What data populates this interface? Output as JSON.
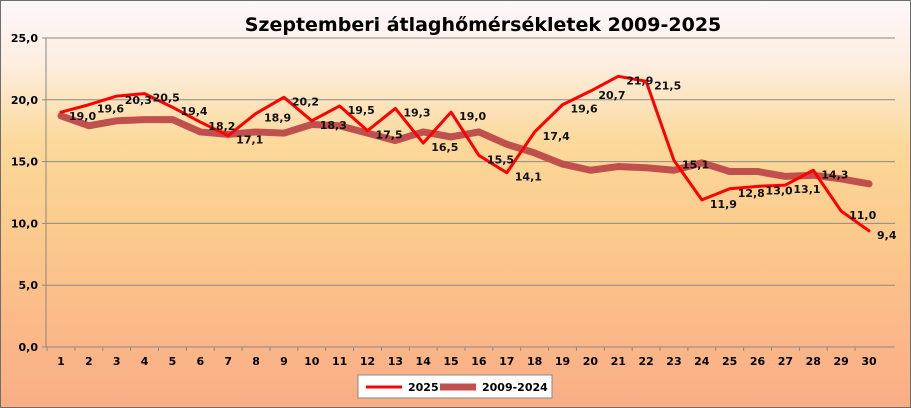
{
  "chart_data": {
    "type": "line",
    "title": "Szeptemberi átlaghőmérsékletek  2009-2025",
    "xlabel": "",
    "ylabel": "",
    "x": [
      1,
      2,
      3,
      4,
      5,
      6,
      7,
      8,
      9,
      10,
      11,
      12,
      13,
      14,
      15,
      16,
      17,
      18,
      19,
      20,
      21,
      22,
      23,
      24,
      25,
      26,
      27,
      28,
      29,
      30
    ],
    "ylim": [
      0,
      25
    ],
    "yticks": [
      "0,0",
      "5,0",
      "10,0",
      "15,0",
      "20,0",
      "25,0"
    ],
    "grid": true,
    "legend_position": "bottom",
    "series": [
      {
        "name": "2025",
        "color": "#ff0000",
        "values": [
          19.0,
          19.6,
          20.3,
          20.5,
          19.4,
          18.2,
          17.1,
          18.9,
          20.2,
          18.3,
          19.5,
          17.5,
          19.3,
          16.5,
          19.0,
          15.5,
          14.1,
          17.4,
          19.6,
          20.7,
          21.9,
          21.5,
          15.1,
          11.9,
          12.8,
          13.0,
          13.1,
          14.3,
          11.0,
          9.4
        ],
        "labels": [
          "19,0",
          "19,6",
          "20,3",
          "20,5",
          "19,4",
          "18,2",
          "17,1",
          "18,9",
          "20,2",
          "18,3",
          "19,5",
          "17,5",
          "19,3",
          "16,5",
          "19,0",
          "15,5",
          "14,1",
          "17,4",
          "19,6",
          "20,7",
          "21,9",
          "21,5",
          "15,1",
          "11,9",
          "12,8",
          "13,0",
          "13,1",
          "14,3",
          "11,0",
          "9,4"
        ]
      },
      {
        "name": "2009-2024",
        "color": "#c0504d",
        "values": [
          18.7,
          17.9,
          18.3,
          18.4,
          18.4,
          17.4,
          17.2,
          17.4,
          17.3,
          18.0,
          17.9,
          17.3,
          16.7,
          17.4,
          17.0,
          17.4,
          16.4,
          15.7,
          14.8,
          14.3,
          14.6,
          14.5,
          14.3,
          14.9,
          14.2,
          14.2,
          13.8,
          13.9,
          13.6,
          13.2
        ]
      }
    ]
  }
}
